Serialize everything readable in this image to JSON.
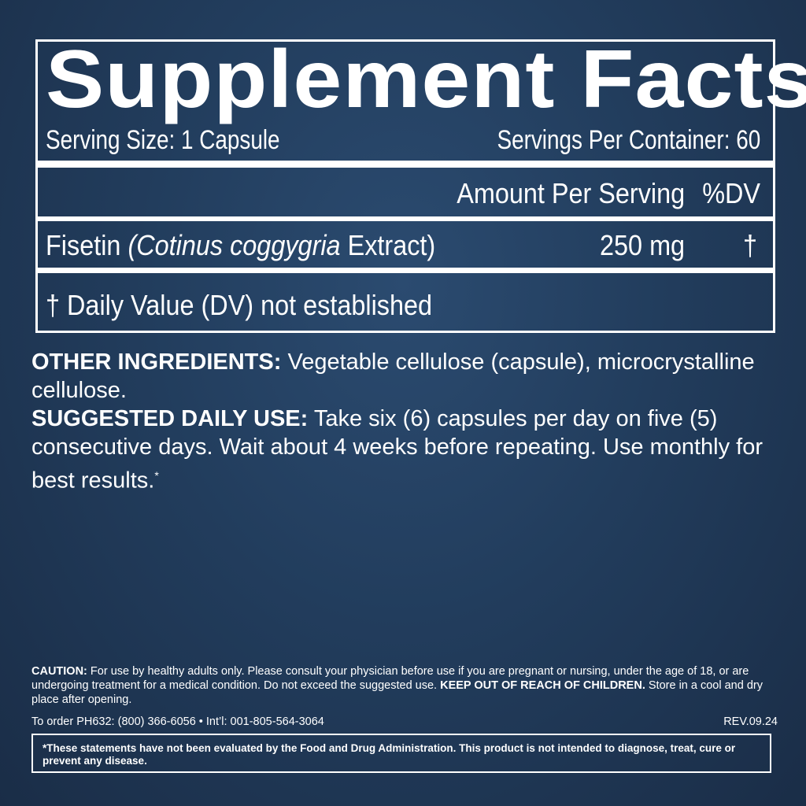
{
  "facts": {
    "title": "Supplement Facts",
    "serving_size": "Serving Size: 1 Capsule",
    "servings_per_container": "Servings Per Container: 60",
    "amount_header": "Amount Per Serving",
    "dv_header": "%DV",
    "ingredient": {
      "name": "Fisetin",
      "source": "(Cotinus coggygria",
      "source_suffix": "Extract)",
      "amount": "250 mg",
      "dv": "†"
    },
    "footnote": "† Daily Value (DV) not established"
  },
  "other_ingredients": {
    "label": "OTHER INGREDIENTS:",
    "text": "Vegetable cellulose (capsule), microcrystalline cellulose."
  },
  "suggested_use": {
    "label": "SUGGESTED DAILY USE:",
    "text": "Take six (6) capsules per day on five (5) consecutive days. Wait about 4 weeks before repeating. Use monthly for best results.",
    "mark": "*"
  },
  "caution": {
    "label": "CAUTION:",
    "text": "For use by healthy adults only. Please consult your physician before use if you are pregnant or nursing, under the age of 18, or are undergoing treatment for a medical condition. Do not exceed the suggested use.",
    "keep_out": "KEEP OUT OF REACH OF CHILDREN.",
    "storage": "Store in a cool and dry place after opening."
  },
  "order": "To order PH632: (800) 366-6056 • Int’l: 001-805-564-3064",
  "revision": "REV.09.24",
  "fda_disclaimer": "*These statements have not been evaluated by the Food and Drug Administration. This product is not intended to diagnose, treat, cure or prevent any disease.",
  "colors": {
    "background": "#223d5d",
    "text": "#ffffff"
  }
}
